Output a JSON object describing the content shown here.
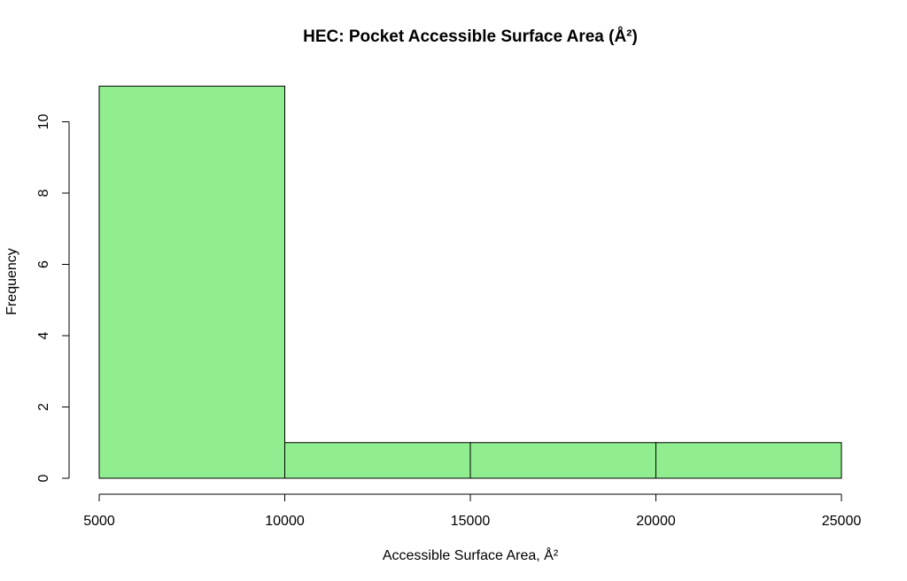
{
  "chart_data": {
    "type": "bar",
    "title": "HEC: Pocket Accessible Surface Area (Å²)",
    "xlabel": "Accessible Surface Area, Å²",
    "ylabel": "Frequency",
    "bins": [
      {
        "start": 5000,
        "end": 10000,
        "count": 11
      },
      {
        "start": 10000,
        "end": 15000,
        "count": 1
      },
      {
        "start": 15000,
        "end": 20000,
        "count": 1
      },
      {
        "start": 20000,
        "end": 25000,
        "count": 1
      }
    ],
    "xlim": [
      5000,
      25000
    ],
    "ylim": [
      0,
      11
    ],
    "x_ticks": [
      "5000",
      "10000",
      "15000",
      "20000",
      "25000"
    ],
    "y_ticks": [
      "0",
      "2",
      "4",
      "6",
      "8",
      "10"
    ],
    "bar_color": "#90ee90",
    "grid": false
  }
}
